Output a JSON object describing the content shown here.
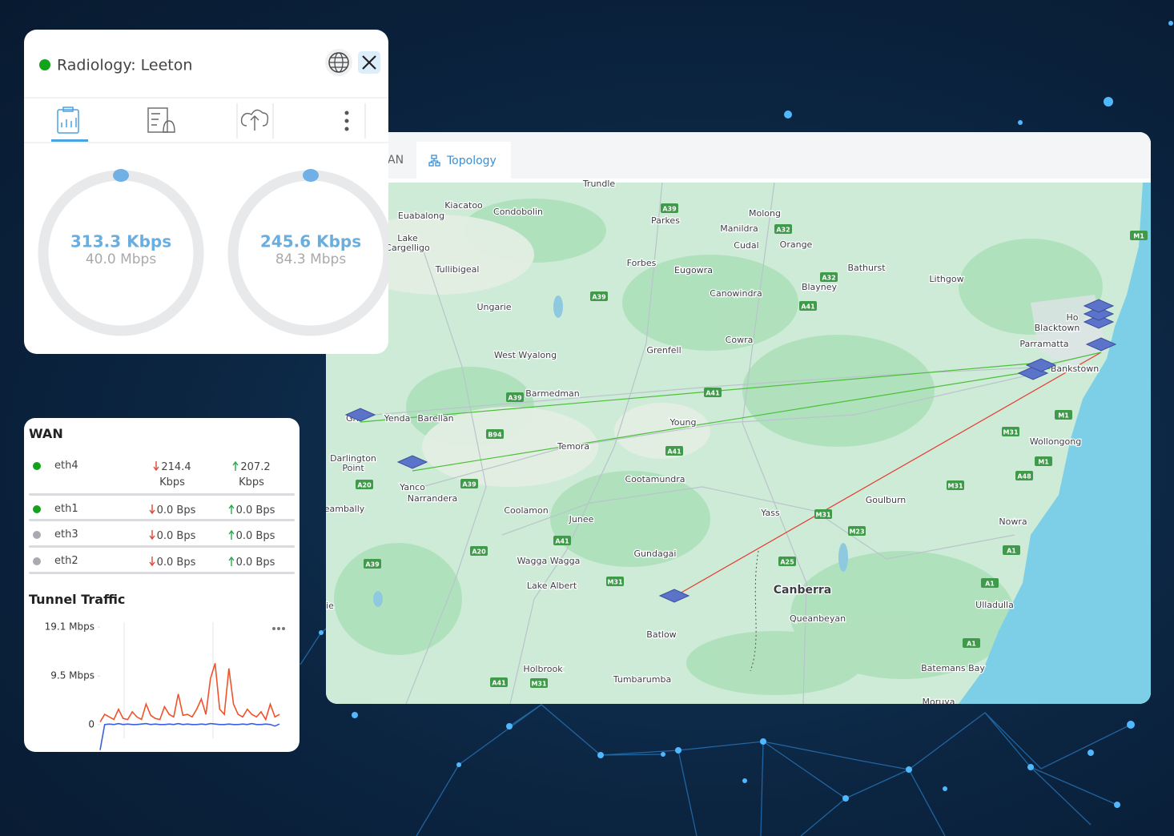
{
  "panel": {
    "title": "Radiology: Leeton",
    "gauges": [
      {
        "value": "313.3 Kbps",
        "max": "40.0 Mbps"
      },
      {
        "value": "245.6 Kbps",
        "max": "84.3 Mbps"
      }
    ]
  },
  "map": {
    "tabs": [
      "AN",
      "Topology"
    ],
    "places": [
      "Trundle",
      "Kiacatoo",
      "Condobolin",
      "Euabalong",
      "Lake",
      "Cargelligo",
      "Parkes",
      "Molong",
      "Manildra",
      "Cudal",
      "Orange",
      "Forbes",
      "Eugowra",
      "Tullibigeal",
      "Bathurst",
      "Lithgow",
      "Blayney",
      "Canowindra",
      "Ungarie",
      "Ho",
      "Blacktown",
      "Parramatta",
      "Grenfell",
      "Cowra",
      "West Wyalong",
      "Bankstown",
      "Barmedman",
      "Gri",
      "Yenda",
      "Barellan",
      "Young",
      "Temora",
      "Wollongong",
      "Darlington",
      "Point",
      "Yanco",
      "Narrandera",
      "Cootamundra",
      "Goulburn",
      "Coolamon",
      "eambally",
      "Yass",
      "Junee",
      "Nowra",
      "Gundagai",
      "Wagga Wagga",
      "Lake Albert",
      "Canberra",
      "Queanbeyan",
      "Ulladulla",
      "ie",
      "Batlow",
      "Holbrook",
      "Tumbarumba",
      "Batemans Bay",
      "Moruya"
    ],
    "roads": [
      "A39",
      "A32",
      "A32",
      "A41",
      "A39",
      "M1",
      "A41",
      "A39",
      "B94",
      "A41",
      "A39",
      "A20",
      "M1",
      "M31",
      "M1",
      "A48",
      "M31",
      "M31",
      "M23",
      "A41",
      "A20",
      "A39",
      "M31",
      "A25",
      "A1",
      "A1",
      "A1",
      "A41",
      "M31"
    ]
  },
  "wan": {
    "title": "WAN",
    "rows": [
      {
        "name": "eth4",
        "status_color": "#12a31b",
        "down": "214.4 Kbps",
        "up": "207.2 Kbps"
      },
      {
        "name": "eth1",
        "status_color": "#12a31b",
        "down": "0.0 Bps",
        "up": "0.0 Bps"
      },
      {
        "name": "eth3",
        "status_color": "#a9abb0",
        "down": "0.0 Bps",
        "up": "0.0 Bps"
      },
      {
        "name": "eth2",
        "status_color": "#a9abb0",
        "down": "0.0 Bps",
        "up": "0.0 Bps"
      }
    ]
  },
  "tunnel_traffic": {
    "title": "Tunnel Traffic",
    "type": "line",
    "ylim": [
      -5.2,
      19.1
    ],
    "yticks": [
      {
        "value": 19.1,
        "label": "19.1 Mbps"
      },
      {
        "value": 9.5,
        "label": "9.5 Mbps"
      },
      0
    ],
    "series": [
      {
        "color": "#f0522b",
        "values": [
          0.5,
          2,
          1.5,
          1,
          3,
          1.2,
          1,
          2.5,
          1.5,
          1,
          4,
          1.8,
          1.2,
          1,
          3.5,
          2,
          1.5,
          6,
          1.8,
          2,
          1.5,
          3,
          5,
          2,
          9,
          12,
          3,
          2,
          11,
          4,
          2,
          1.5,
          3,
          2,
          1.5,
          2.5,
          1,
          4,
          1.5,
          2
        ]
      },
      {
        "color": "#3d5ee0",
        "values": [
          -5,
          0,
          0.1,
          0,
          0.2,
          0,
          0.1,
          0,
          0,
          0.1,
          0.2,
          0,
          0.1,
          0,
          0,
          0.1,
          0,
          0.2,
          0,
          0.1,
          0,
          0,
          0.1,
          0,
          0.2,
          0.1,
          0,
          0,
          0.1,
          0,
          0,
          0.1,
          0,
          0.2,
          0,
          0,
          0.1,
          0,
          -0.3,
          0.1
        ]
      }
    ]
  }
}
